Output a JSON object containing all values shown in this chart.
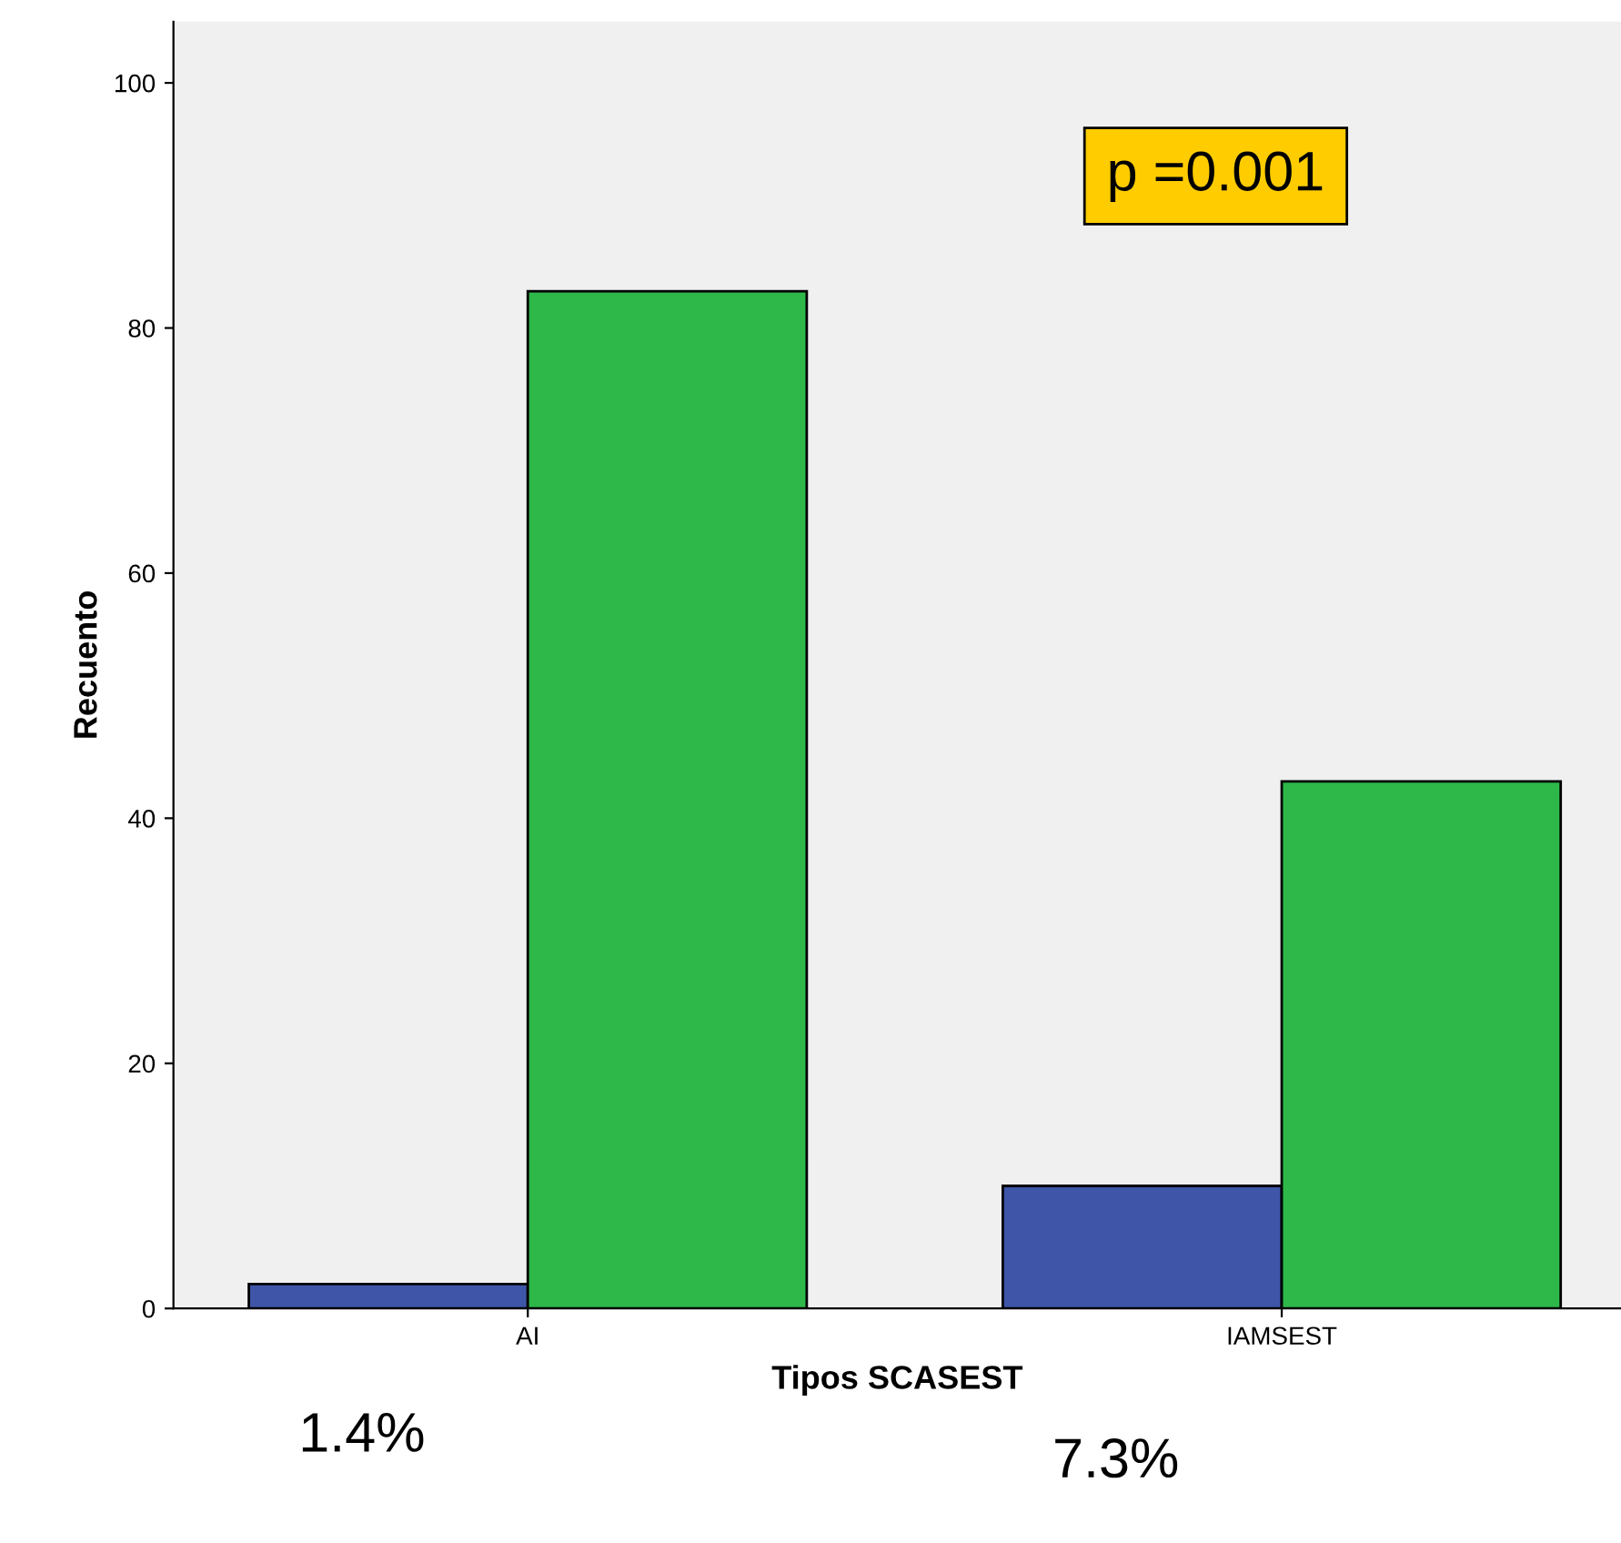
{
  "chart_data": {
    "type": "bar",
    "xlabel": "Tipos SCASEST",
    "ylabel": "Recuento",
    "categories": [
      "AI",
      "IAMSEST"
    ],
    "series": [
      {
        "color": "#3f56a8",
        "values": [
          2,
          10
        ]
      },
      {
        "color": "#2eb84a",
        "values": [
          83,
          43
        ]
      }
    ],
    "ylim": [
      0,
      105
    ],
    "yticks": [
      0,
      20,
      40,
      60,
      80,
      100
    ],
    "grid": false,
    "legend": false,
    "annotations": [
      "p =0.001",
      "1.4%",
      "7.3%"
    ]
  }
}
